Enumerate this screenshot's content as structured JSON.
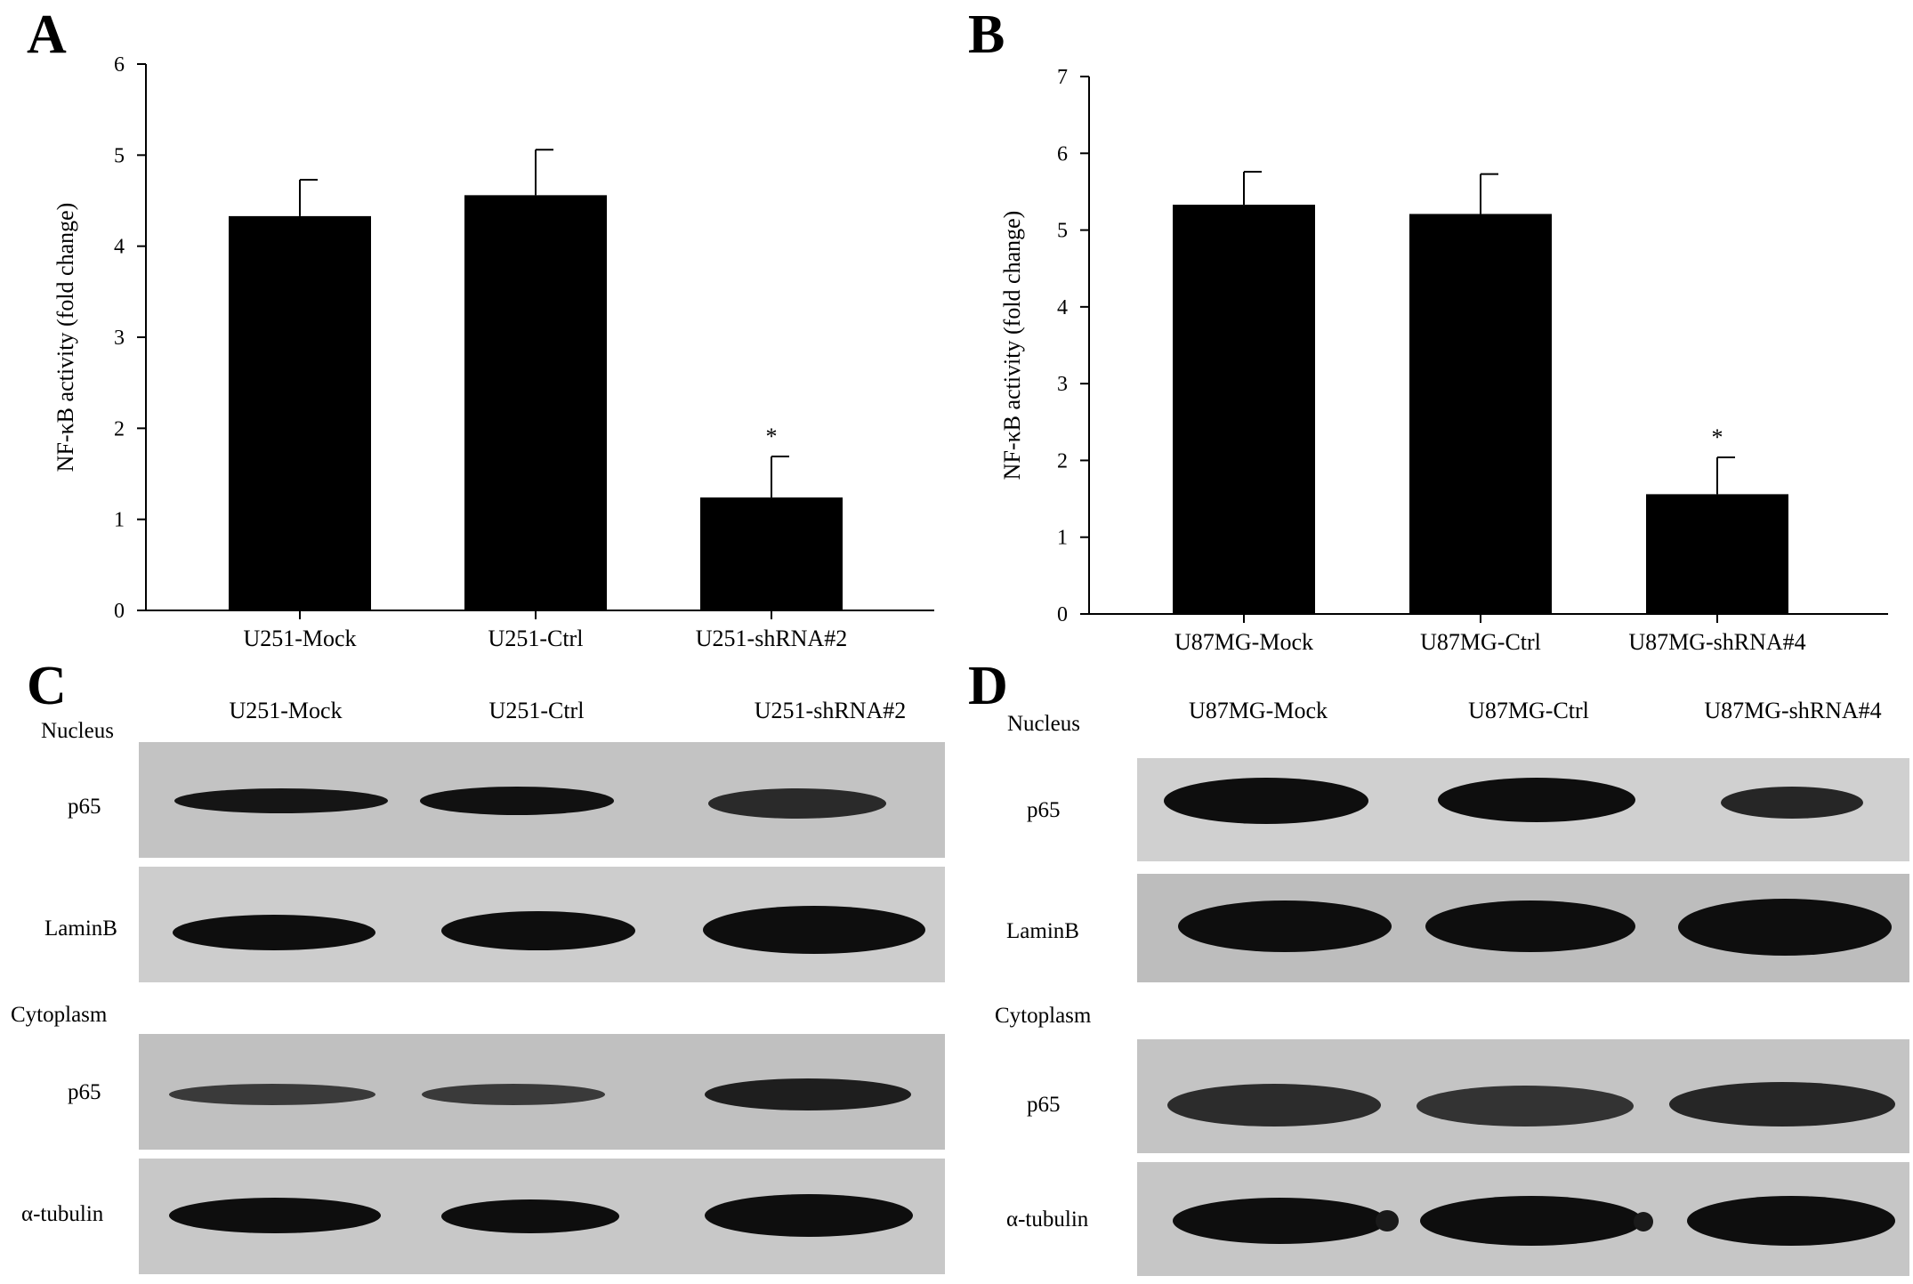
{
  "panels": {
    "a": "A",
    "b": "B",
    "c": "C",
    "d": "D"
  },
  "chart_data": [
    {
      "type": "bar",
      "panel": "A",
      "title": "",
      "xlabel": "",
      "ylabel": "NF-κB activity (fold change)",
      "ylim": [
        0,
        6
      ],
      "yticks": [
        0,
        1,
        2,
        3,
        4,
        5,
        6
      ],
      "categories": [
        "U251-Mock",
        "U251-Ctrl",
        "U251-shRNA#2"
      ],
      "values": [
        4.33,
        4.56,
        1.24
      ],
      "errors": [
        0.4,
        0.5,
        0.45
      ],
      "annotations": [
        "",
        "",
        "*"
      ],
      "bar_color": "#000000"
    },
    {
      "type": "bar",
      "panel": "B",
      "title": "",
      "xlabel": "",
      "ylabel": "NF-κB activity (fold change)",
      "ylim": [
        0,
        7
      ],
      "yticks": [
        0,
        1,
        2,
        3,
        4,
        5,
        6,
        7
      ],
      "categories": [
        "U87MG-Mock",
        "U87MG-Ctrl",
        "U87MG-shRNA#4"
      ],
      "values": [
        5.33,
        5.21,
        1.56
      ],
      "errors": [
        0.43,
        0.52,
        0.48
      ],
      "annotations": [
        "",
        "",
        "*"
      ],
      "bar_color": "#000000"
    }
  ],
  "blots": {
    "c": {
      "lanes": [
        "U251-Mock",
        "U251-Ctrl",
        "U251-shRNA#2"
      ],
      "nucleus_label": "Nucleus",
      "cytoplasm_label": "Cytoplasm",
      "rows": [
        "p65",
        "LaminB",
        "p65",
        "α-tubulin"
      ]
    },
    "d": {
      "lanes": [
        "U87MG-Mock",
        "U87MG-Ctrl",
        "U87MG-shRNA#4"
      ],
      "nucleus_label": "Nucleus",
      "cytoplasm_label": "Cytoplasm",
      "rows": [
        "p65",
        "LaminB",
        "p65",
        "α-tubulin"
      ]
    }
  }
}
